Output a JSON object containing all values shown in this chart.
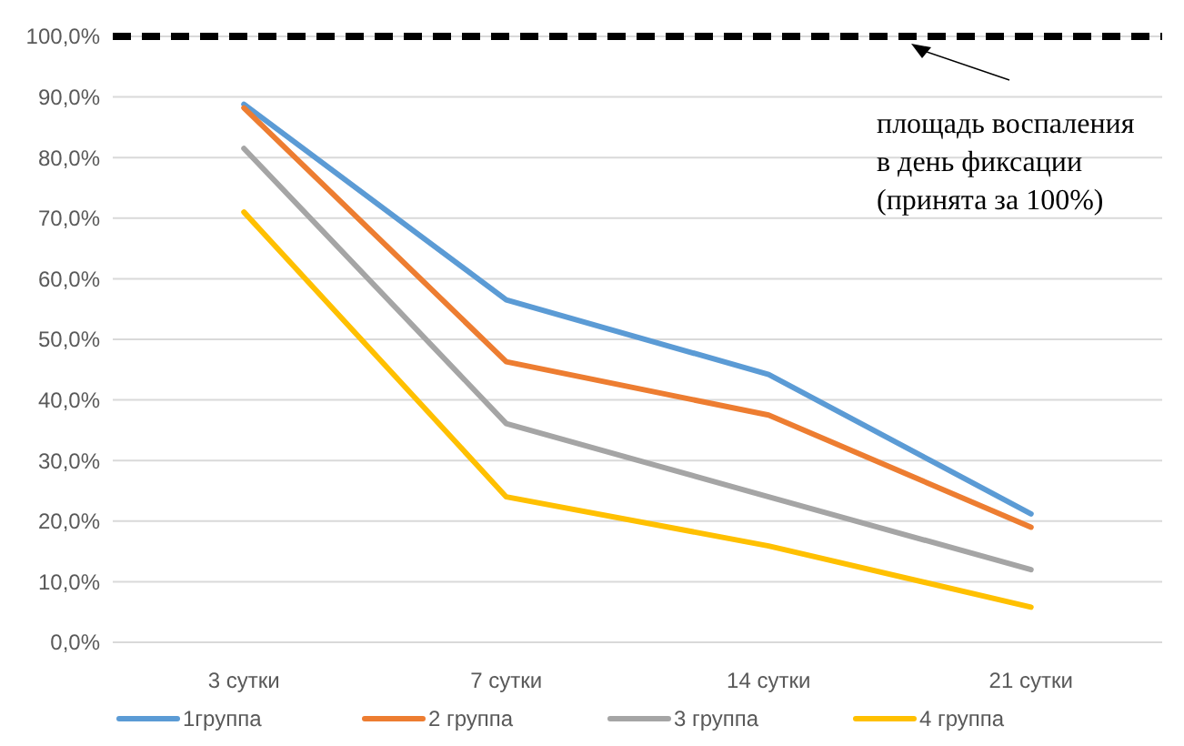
{
  "chart_data": {
    "type": "line",
    "categories": [
      "3 сутки",
      "7 сутки",
      "14 сутки",
      "21 сутки"
    ],
    "series": [
      {
        "name": "1группа",
        "color": "#5b9bd5",
        "values": [
          88.8,
          56.5,
          44.2,
          21.2
        ]
      },
      {
        "name": "2 группа",
        "color": "#ed7d31",
        "values": [
          88.2,
          46.3,
          37.5,
          19
        ]
      },
      {
        "name": "3 группа",
        "color": "#a5a5a5",
        "values": [
          81.5,
          36.1,
          24,
          12
        ]
      },
      {
        "name": "4 группа",
        "color": "#ffc000",
        "values": [
          71,
          24,
          15.9,
          5.8
        ]
      }
    ],
    "ylim": [
      0,
      100
    ],
    "yticks": [
      {
        "value": 0,
        "label": "0,0%"
      },
      {
        "value": 10,
        "label": "10,0%"
      },
      {
        "value": 20,
        "label": "20,0%"
      },
      {
        "value": 30,
        "label": "30,0%"
      },
      {
        "value": 40,
        "label": "40,0%"
      },
      {
        "value": 50,
        "label": "50,0%"
      },
      {
        "value": 60,
        "label": "60,0%"
      },
      {
        "value": 70,
        "label": "70,0%"
      },
      {
        "value": 80,
        "label": "80,0%"
      },
      {
        "value": 90,
        "label": "90,0%"
      },
      {
        "value": 100,
        "label": "100,0%"
      }
    ],
    "grid": "y",
    "legend": "bottom",
    "marker": "none",
    "line_style": "solid",
    "ref_lines": [
      {
        "axis": "y",
        "value": 100,
        "color": "#000000",
        "line_style": "dashed"
      }
    ],
    "annotations": [
      "площадь воспаления\nв день фиксации\n(принята за 100%)"
    ]
  }
}
